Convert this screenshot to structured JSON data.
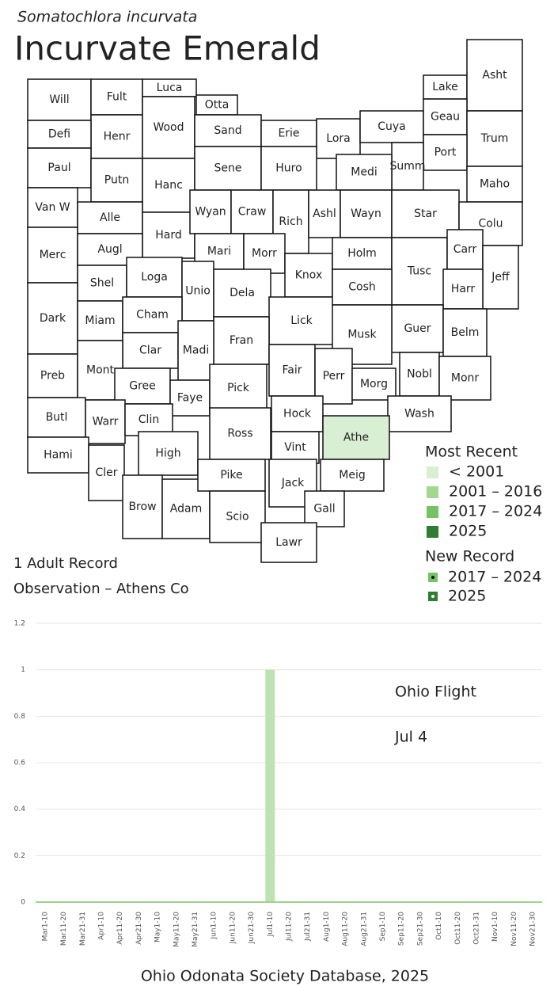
{
  "header": {
    "subtitle": "Somatochlora incurvata",
    "title": "Incurvate Emerald"
  },
  "map": {
    "counties": [
      {
        "label": "Will"
      },
      {
        "label": "Fult"
      },
      {
        "label": "Luca"
      },
      {
        "label": "Otta"
      },
      {
        "label": "Henr"
      },
      {
        "label": "Wood"
      },
      {
        "label": "Sand"
      },
      {
        "label": "Erie"
      },
      {
        "label": "Lora"
      },
      {
        "label": "Cuya"
      },
      {
        "label": "Lake"
      },
      {
        "label": "Asht"
      },
      {
        "label": "Geau"
      },
      {
        "label": "Trum"
      },
      {
        "label": "Port"
      },
      {
        "label": "Summ"
      },
      {
        "label": "Medi"
      },
      {
        "label": "Maho"
      },
      {
        "label": "Defi"
      },
      {
        "label": "Paul"
      },
      {
        "label": "Putn"
      },
      {
        "label": "Hanc"
      },
      {
        "label": "Sene"
      },
      {
        "label": "Huro"
      },
      {
        "label": "Van W"
      },
      {
        "label": "Alle"
      },
      {
        "label": "Hard"
      },
      {
        "label": "Wyan"
      },
      {
        "label": "Craw"
      },
      {
        "label": "Rich"
      },
      {
        "label": "Ashl"
      },
      {
        "label": "Wayn"
      },
      {
        "label": "Star"
      },
      {
        "label": "Colu"
      },
      {
        "label": "Merc"
      },
      {
        "label": "Augl"
      },
      {
        "label": "Mari"
      },
      {
        "label": "Morr"
      },
      {
        "label": "Knox"
      },
      {
        "label": "Holm"
      },
      {
        "label": "Tusc"
      },
      {
        "label": "Carr"
      },
      {
        "label": "Jeff"
      },
      {
        "label": "Harr"
      },
      {
        "label": "Shel"
      },
      {
        "label": "Loga"
      },
      {
        "label": "Unio"
      },
      {
        "label": "Dela"
      },
      {
        "label": "Lick"
      },
      {
        "label": "Cosh"
      },
      {
        "label": "Guer"
      },
      {
        "label": "Belm"
      },
      {
        "label": "Musk"
      },
      {
        "label": "Dark"
      },
      {
        "label": "Miam"
      },
      {
        "label": "Cham"
      },
      {
        "label": "Clar"
      },
      {
        "label": "Fran"
      },
      {
        "label": "Madi"
      },
      {
        "label": "Fair"
      },
      {
        "label": "Perr"
      },
      {
        "label": "Nobl"
      },
      {
        "label": "Monr"
      },
      {
        "label": "Morg"
      },
      {
        "label": "Preb"
      },
      {
        "label": "Mont"
      },
      {
        "label": "Gree"
      },
      {
        "label": "Faye"
      },
      {
        "label": "Pick"
      },
      {
        "label": "Hock"
      },
      {
        "label": "Wash"
      },
      {
        "label": "Athe",
        "color": "#d9efd3"
      },
      {
        "label": "Butl"
      },
      {
        "label": "Warr"
      },
      {
        "label": "Clin"
      },
      {
        "label": "Ross"
      },
      {
        "label": "High"
      },
      {
        "label": "Vint"
      },
      {
        "label": "Hami"
      },
      {
        "label": "Cler"
      },
      {
        "label": "Brow"
      },
      {
        "label": "Adam"
      },
      {
        "label": "Pike"
      },
      {
        "label": "Scio"
      },
      {
        "label": "Jack"
      },
      {
        "label": "Meig"
      },
      {
        "label": "Gall"
      },
      {
        "label": "Lawr"
      }
    ],
    "legend": {
      "most_recent": {
        "title": "Most Recent",
        "items": [
          {
            "label": "< 2001",
            "color": "#d9efd3"
          },
          {
            "label": "2001 – 2016",
            "color": "#a5d88f"
          },
          {
            "label": "2017 – 2024",
            "color": "#74c365"
          },
          {
            "label": "2025",
            "color": "#2f7d32"
          }
        ]
      },
      "new_record": {
        "title": "New Record",
        "items": [
          {
            "label": "2017 – 2024",
            "color": "#74c365"
          },
          {
            "label": "2025",
            "color": "#2f7d32"
          }
        ]
      }
    },
    "caption": [
      "1 Adult Record",
      "Observation – Athens Co"
    ]
  },
  "chart_data": {
    "type": "bar",
    "categories": [
      "Mar1-10",
      "Mar11-20",
      "Mar21-31",
      "Apr1-10",
      "Apr11-20",
      "Apr21-30",
      "May1-10",
      "May11-20",
      "May21-31",
      "Jun1-10",
      "Jun11-20",
      "Jun21-30",
      "Jul1-10",
      "Jul11-20",
      "Jul21-31",
      "Aug1-10",
      "Aug11-20",
      "Aug21-31",
      "Sep1-10",
      "Sep11-20",
      "Sep21-30",
      "Oct1-10",
      "Oct11-20",
      "Oct21-31",
      "Nov1-10",
      "Nov11-20",
      "Nov21-30"
    ],
    "values": [
      0,
      0,
      0,
      0,
      0,
      0,
      0,
      0,
      0,
      0,
      0,
      0,
      1,
      0,
      0,
      0,
      0,
      0,
      0,
      0,
      0,
      0,
      0,
      0,
      0,
      0,
      0
    ],
    "color": "#bfe3b0",
    "ylim": [
      0,
      1.2
    ],
    "yticks": [
      0,
      0.2,
      0.4,
      0.6,
      0.8,
      1,
      1.2
    ],
    "grid": true,
    "annotations": [
      "Ohio Flight",
      "Jul 4"
    ]
  },
  "footer": "Ohio Odonata Society Database, 2025"
}
